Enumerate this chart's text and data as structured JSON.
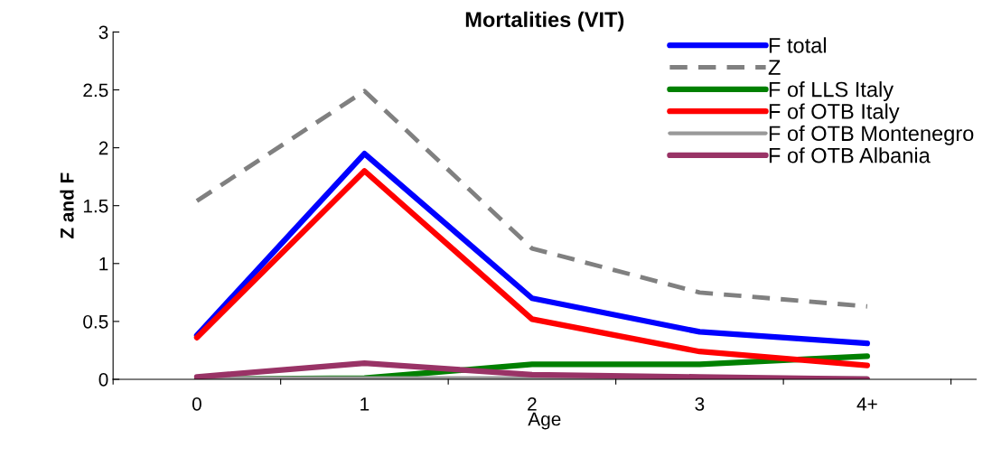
{
  "chart_data": {
    "type": "line",
    "title": "Mortalities (VIT)",
    "xlabel": "Age",
    "ylabel": "Z and F",
    "categories": [
      "0",
      "1",
      "2",
      "3",
      "4+"
    ],
    "series": [
      {
        "name": "F total",
        "color": "#0000ff",
        "values": [
          0.38,
          1.95,
          0.7,
          0.41,
          0.31
        ]
      },
      {
        "name": "Z",
        "color": "#808080",
        "line_style": "dashed",
        "values": [
          1.54,
          2.49,
          1.13,
          0.75,
          0.63
        ]
      },
      {
        "name": "F of LLS Italy",
        "color": "#008000",
        "values": [
          0.0,
          0.01,
          0.13,
          0.13,
          0.2
        ]
      },
      {
        "name": "F of OTB Italy",
        "color": "#ff0000",
        "values": [
          0.36,
          1.8,
          0.52,
          0.24,
          0.12
        ]
      },
      {
        "name": "F of OTB Montenegro",
        "color": "#999999",
        "values": [
          0.01,
          0.01,
          0.01,
          0.01,
          0.01
        ]
      },
      {
        "name": "F of OTB Albania",
        "color": "#993366",
        "values": [
          0.02,
          0.14,
          0.04,
          0.02,
          0.0
        ]
      }
    ],
    "ylim": [
      0,
      3
    ],
    "yticks": [
      0,
      0.5,
      1,
      1.5,
      2,
      2.5,
      3
    ],
    "grid": false,
    "legend": "top right",
    "line_style": "solid",
    "marker": "none"
  }
}
